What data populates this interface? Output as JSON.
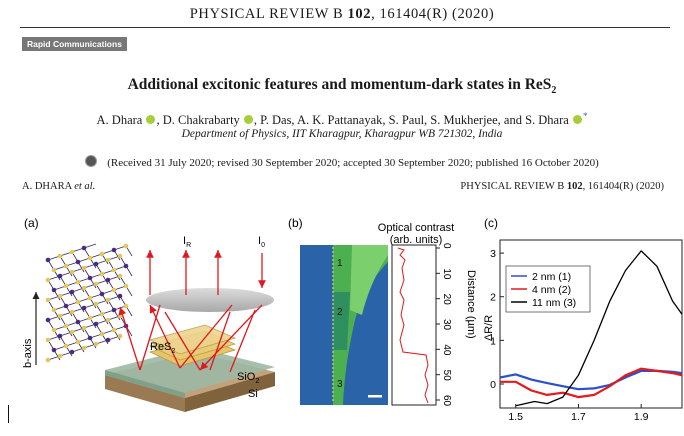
{
  "header": {
    "journal_prefix": "PHYSICAL REVIEW B",
    "volume": "102",
    "pages": ", 161404(R) (2020)",
    "section_badge": "Rapid Communications"
  },
  "article": {
    "title_main": "Additional excitonic features and momentum-dark states in ReS",
    "title_sub": "2",
    "authors": [
      "A. Dhara",
      "D. Chakrabarty",
      "P. Das, A. K. Pattanayak, S. Paul, S. Mukherjee, and S. Dhara"
    ],
    "affiliation": "Department of Physics, IIT Kharagpur, Kharagpur WB 721302, India",
    "received": "(Received 31 July 2020; revised 30 September 2020; accepted 30 September 2020; published 16 October 2020)",
    "running_left": "A. DHARA",
    "running_left_italic": "et al.",
    "running_right_prefix": "PHYSICAL REVIEW B",
    "running_right_volume": "102",
    "running_right_pages": ", 161404(R) (2020)"
  },
  "figure": {
    "panel_a": {
      "label": "(a)",
      "i_r": "I",
      "i_r_sub": "R",
      "i_0": "I",
      "i_0_sub": "0",
      "res2": "ReS",
      "res2_sub": "2",
      "sio2": "SiO",
      "sio2_sub": "2",
      "si": "Si",
      "baxis": "b-axis"
    },
    "panel_b": {
      "label": "(b)",
      "title_line1": "Optical contrast",
      "title_line2": "(arb. units)",
      "ylabel": "Distance (µm)",
      "ticks": [
        "0",
        "10",
        "20",
        "30",
        "40",
        "50",
        "60"
      ],
      "markers": [
        "1",
        "2",
        "3"
      ]
    },
    "panel_c": {
      "label": "(c)",
      "ylabel": "ΔR/R",
      "xticks": [
        "1.5",
        "1.7",
        "1.9"
      ],
      "yticks": [
        "0",
        "1",
        "2",
        "3"
      ],
      "legend": [
        "2 nm (1)",
        "4 nm (2)",
        "11 nm (3)"
      ],
      "colors": [
        "#2b50c8",
        "#e41a1c",
        "#000000"
      ]
    }
  },
  "chart_data": {
    "type": "line",
    "xlabel": "",
    "ylabel": "ΔR/R",
    "xlim": [
      1.45,
      2.03
    ],
    "ylim": [
      -0.55,
      3.3
    ],
    "legend_position": "top-left",
    "series": [
      {
        "name": "2 nm (1)",
        "x": [
          1.45,
          1.5,
          1.55,
          1.6,
          1.65,
          1.7,
          1.75,
          1.8,
          1.85,
          1.9,
          1.95,
          2.0,
          2.03
        ],
        "y": [
          0.15,
          0.22,
          0.1,
          0.02,
          -0.05,
          -0.12,
          -0.1,
          -0.02,
          0.15,
          0.3,
          0.3,
          0.28,
          0.25
        ]
      },
      {
        "name": "4 nm (2)",
        "x": [
          1.45,
          1.5,
          1.55,
          1.6,
          1.65,
          1.7,
          1.75,
          1.8,
          1.85,
          1.9,
          1.95,
          2.0,
          2.03
        ],
        "y": [
          0.05,
          0.05,
          -0.15,
          -0.25,
          -0.2,
          -0.3,
          -0.25,
          -0.05,
          0.2,
          0.35,
          0.3,
          0.25,
          0.2
        ]
      },
      {
        "name": "11 nm (3)",
        "x": [
          1.5,
          1.53,
          1.56,
          1.6,
          1.65,
          1.7,
          1.75,
          1.8,
          1.85,
          1.9,
          1.95,
          2.0,
          2.03
        ],
        "y": [
          -0.5,
          -0.45,
          -0.4,
          -0.45,
          -0.3,
          0.2,
          1.0,
          1.9,
          2.6,
          3.05,
          2.7,
          1.9,
          1.6
        ]
      }
    ]
  }
}
